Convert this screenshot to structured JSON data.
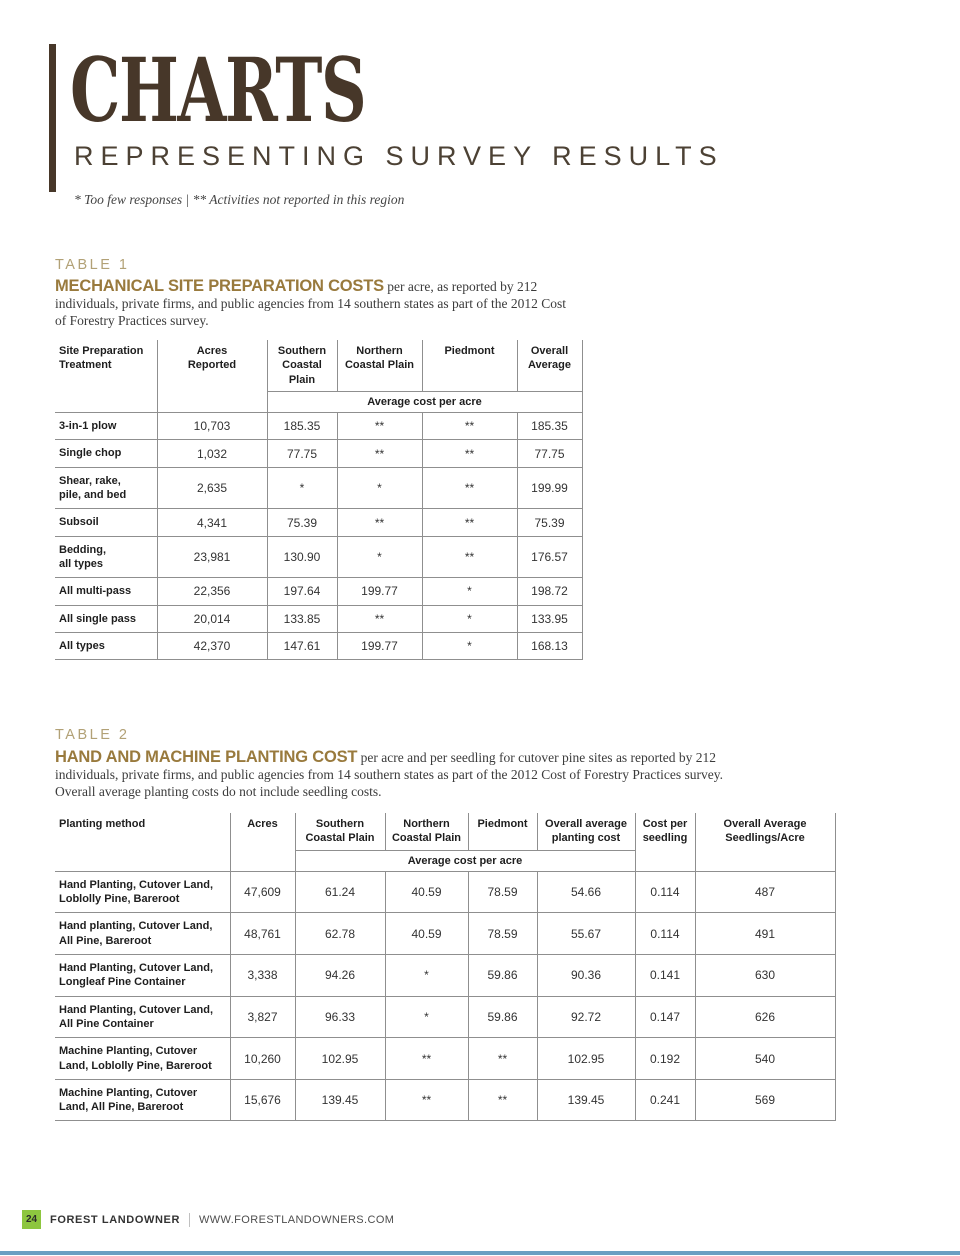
{
  "header": {
    "title": "CHARTS",
    "subtitle": "REPRESENTING SURVEY RESULTS",
    "footnote": "* Too few responses  |  ** Activities not reported in this region"
  },
  "table1": {
    "label": "TABLE 1",
    "heading": "MECHANICAL SITE PREPARATION COSTS",
    "description": "per acre, as reported by 212 individuals, private firms, and public agencies from 14 southern states as part of the 2012 Cost of Forestry Practices survey.",
    "columns": [
      "Site Preparation\nTreatment",
      "Acres\nReported",
      "Southern\nCoastal\nPlain",
      "Northern\nCoastal Plain",
      "Piedmont",
      "Overall\nAverage"
    ],
    "subheader": "Average cost per acre",
    "rows": [
      [
        "3-in-1 plow",
        "10,703",
        "185.35",
        "**",
        "**",
        "185.35"
      ],
      [
        "Single chop",
        "1,032",
        "77.75",
        "**",
        "**",
        "77.75"
      ],
      [
        "Shear, rake,\npile, and bed",
        "2,635",
        "*",
        "*",
        "**",
        "199.99"
      ],
      [
        "Subsoil",
        "4,341",
        "75.39",
        "**",
        "**",
        "75.39"
      ],
      [
        "Bedding,\nall types",
        "23,981",
        "130.90",
        "*",
        "**",
        "176.57"
      ],
      [
        "All multi-pass",
        "22,356",
        "197.64",
        "199.77",
        "*",
        "198.72"
      ],
      [
        "All single pass",
        "20,014",
        "133.85",
        "**",
        "*",
        "133.95"
      ],
      [
        "All types",
        "42,370",
        "147.61",
        "199.77",
        "*",
        "168.13"
      ]
    ]
  },
  "table2": {
    "label": "TABLE 2",
    "heading": "HAND AND MACHINE PLANTING COST",
    "description": "per acre and per seedling for cutover pine sites as reported by 212 individuals, private firms, and public agencies from 14 southern states as part of the 2012 Cost of Forestry Practices survey. Overall average planting costs do not include seedling costs.",
    "columns": [
      "Planting method",
      "Acres",
      "Southern\nCoastal Plain",
      "Northern\nCoastal Plain",
      "Piedmont",
      "Overall average\nplanting cost",
      "Cost per\nseedling",
      "Overall Average\nSeedlings/Acre"
    ],
    "subheader": "Average cost per acre",
    "rows": [
      [
        "Hand Planting, Cutover Land,\nLoblolly Pine, Bareroot",
        "47,609",
        "61.24",
        "40.59",
        "78.59",
        "54.66",
        "0.114",
        "487"
      ],
      [
        "Hand planting, Cutover Land,\nAll Pine, Bareroot",
        "48,761",
        "62.78",
        "40.59",
        "78.59",
        "55.67",
        "0.114",
        "491"
      ],
      [
        "Hand Planting, Cutover Land,\nLongleaf Pine Container",
        "3,338",
        "94.26",
        "*",
        "59.86",
        "90.36",
        "0.141",
        "630"
      ],
      [
        "Hand Planting, Cutover Land,\nAll Pine Container",
        "3,827",
        "96.33",
        "*",
        "59.86",
        "92.72",
        "0.147",
        "626"
      ],
      [
        "Machine Planting, Cutover\nLand, Loblolly Pine, Bareroot",
        "10,260",
        "102.95",
        "**",
        "**",
        "102.95",
        "0.192",
        "540"
      ],
      [
        "Machine Planting, Cutover\nLand, All Pine, Bareroot",
        "15,676",
        "139.45",
        "**",
        "**",
        "139.45",
        "0.241",
        "569"
      ]
    ]
  },
  "footer": {
    "page_number": "24",
    "magazine": "FOREST LANDOWNER",
    "website": "WWW.FORESTLANDOWNERS.COM"
  },
  "colors": {
    "title_brown": "#473729",
    "subtitle_brown": "#4c4134",
    "table_label_tan": "#b2a176",
    "heading_brown": "#997a3d",
    "footer_green": "#8dc63f",
    "bottom_line_blue": "#6b9fc2"
  }
}
